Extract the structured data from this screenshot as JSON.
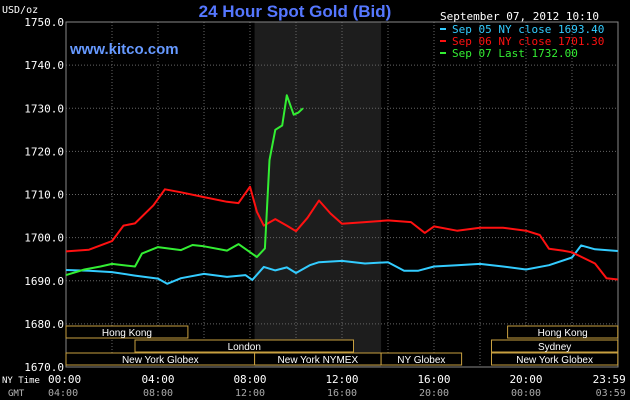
{
  "chart_data": {
    "type": "line",
    "title": "24 Hour Spot Gold (Bid)",
    "ylabel": "USD/oz",
    "website": "www.kitco.com",
    "timestamp": "September 07, 2012 10:10",
    "ylim": [
      1670,
      1750
    ],
    "yticks": [
      "1670.0",
      "1680.0",
      "1690.0",
      "1700.0",
      "1710.0",
      "1720.0",
      "1730.0",
      "1740.0",
      "1750.0"
    ],
    "xlim": [
      0,
      24
    ],
    "xticks_ny": [
      "00:00",
      "04:00",
      "08:00",
      "12:00",
      "16:00",
      "20:00",
      "23:59"
    ],
    "xticks_gmt": [
      "04:00",
      "08:00",
      "12:00",
      "16:00",
      "20:00",
      "00:00",
      "03:59"
    ],
    "x_row_labels": {
      "ny": "NY Time",
      "gmt": "GMT"
    },
    "grid": true,
    "legend_position": "top-right",
    "shaded_region": [
      8.2,
      13.7
    ],
    "series": [
      {
        "name": "Sep 05 NY close 1693.40",
        "color": "#33ccff",
        "points": [
          [
            0,
            1692.5
          ],
          [
            1,
            1692.3
          ],
          [
            2,
            1692.0
          ],
          [
            3,
            1691.2
          ],
          [
            4,
            1690.5
          ],
          [
            4.4,
            1689.3
          ],
          [
            5,
            1690.6
          ],
          [
            6,
            1691.6
          ],
          [
            7,
            1690.9
          ],
          [
            7.8,
            1691.3
          ],
          [
            8.1,
            1690.2
          ],
          [
            8.6,
            1693.2
          ],
          [
            9.1,
            1692.4
          ],
          [
            9.6,
            1693.1
          ],
          [
            10,
            1691.8
          ],
          [
            10.6,
            1693.6
          ],
          [
            11,
            1694.3
          ],
          [
            12,
            1694.6
          ],
          [
            13,
            1694.0
          ],
          [
            14,
            1694.3
          ],
          [
            14.7,
            1692.3
          ],
          [
            15.3,
            1692.3
          ],
          [
            16,
            1693.3
          ],
          [
            17,
            1693.6
          ],
          [
            18,
            1693.9
          ],
          [
            19,
            1693.3
          ],
          [
            20,
            1692.6
          ],
          [
            21,
            1693.6
          ],
          [
            22,
            1695.4
          ],
          [
            22.4,
            1698.2
          ],
          [
            23,
            1697.3
          ],
          [
            23.99,
            1696.9
          ]
        ]
      },
      {
        "name": "Sep 06 NY close 1701.30",
        "color": "#ff1111",
        "points": [
          [
            0,
            1696.8
          ],
          [
            1,
            1697.2
          ],
          [
            2,
            1699.2
          ],
          [
            2.5,
            1702.8
          ],
          [
            3,
            1703.3
          ],
          [
            3.8,
            1707.5
          ],
          [
            4.3,
            1711.2
          ],
          [
            5,
            1710.5
          ],
          [
            6,
            1709.4
          ],
          [
            7,
            1708.3
          ],
          [
            7.5,
            1708.0
          ],
          [
            8,
            1711.8
          ],
          [
            8.3,
            1706.0
          ],
          [
            8.6,
            1702.8
          ],
          [
            9.1,
            1704.3
          ],
          [
            9.6,
            1702.8
          ],
          [
            10,
            1701.5
          ],
          [
            10.5,
            1704.6
          ],
          [
            11,
            1708.6
          ],
          [
            11.5,
            1705.6
          ],
          [
            12,
            1703.2
          ],
          [
            13,
            1703.6
          ],
          [
            14,
            1704.0
          ],
          [
            15,
            1703.6
          ],
          [
            15.6,
            1701.1
          ],
          [
            16,
            1702.6
          ],
          [
            17,
            1701.6
          ],
          [
            18,
            1702.3
          ],
          [
            19,
            1702.3
          ],
          [
            20,
            1701.6
          ],
          [
            20.6,
            1700.6
          ],
          [
            21,
            1697.4
          ],
          [
            21.6,
            1697.0
          ],
          [
            22,
            1696.6
          ],
          [
            23,
            1694.0
          ],
          [
            23.5,
            1690.6
          ],
          [
            23.99,
            1690.3
          ]
        ]
      },
      {
        "name": "Sep 07 Last 1732.00",
        "color": "#33ee33",
        "points": [
          [
            0,
            1691.3
          ],
          [
            0.8,
            1692.6
          ],
          [
            1.5,
            1693.3
          ],
          [
            2,
            1693.9
          ],
          [
            3,
            1693.3
          ],
          [
            3.3,
            1696.3
          ],
          [
            4,
            1697.8
          ],
          [
            5,
            1697.1
          ],
          [
            5.5,
            1698.3
          ],
          [
            6,
            1698.0
          ],
          [
            7,
            1697.0
          ],
          [
            7.5,
            1698.5
          ],
          [
            8.3,
            1695.5
          ],
          [
            8.65,
            1697.5
          ],
          [
            8.85,
            1718.0
          ],
          [
            9.1,
            1725.0
          ],
          [
            9.4,
            1726.0
          ],
          [
            9.6,
            1733.0
          ],
          [
            9.9,
            1728.5
          ],
          [
            10.1,
            1729.0
          ],
          [
            10.3,
            1730.0
          ]
        ]
      }
    ],
    "session_bars": [
      {
        "row": 1,
        "label": "Hong Kong",
        "start": 0,
        "end": 5.3
      },
      {
        "row": 1,
        "label": "Hong Kong",
        "start": 19.2,
        "end": 23.99
      },
      {
        "row": 2,
        "label": "London",
        "start": 3,
        "end": 12.5
      },
      {
        "row": 2,
        "label": "Sydney",
        "start": 18.5,
        "end": 23.99
      },
      {
        "row": 3,
        "label": "New York Globex",
        "start": 0,
        "end": 8.2
      },
      {
        "row": 3,
        "label": "New York NYMEX",
        "start": 8.2,
        "end": 13.7
      },
      {
        "row": 3,
        "label": "NY Globex",
        "start": 13.7,
        "end": 17.2
      },
      {
        "row": 3,
        "label": "New York Globex",
        "start": 18.5,
        "end": 23.99
      }
    ]
  }
}
